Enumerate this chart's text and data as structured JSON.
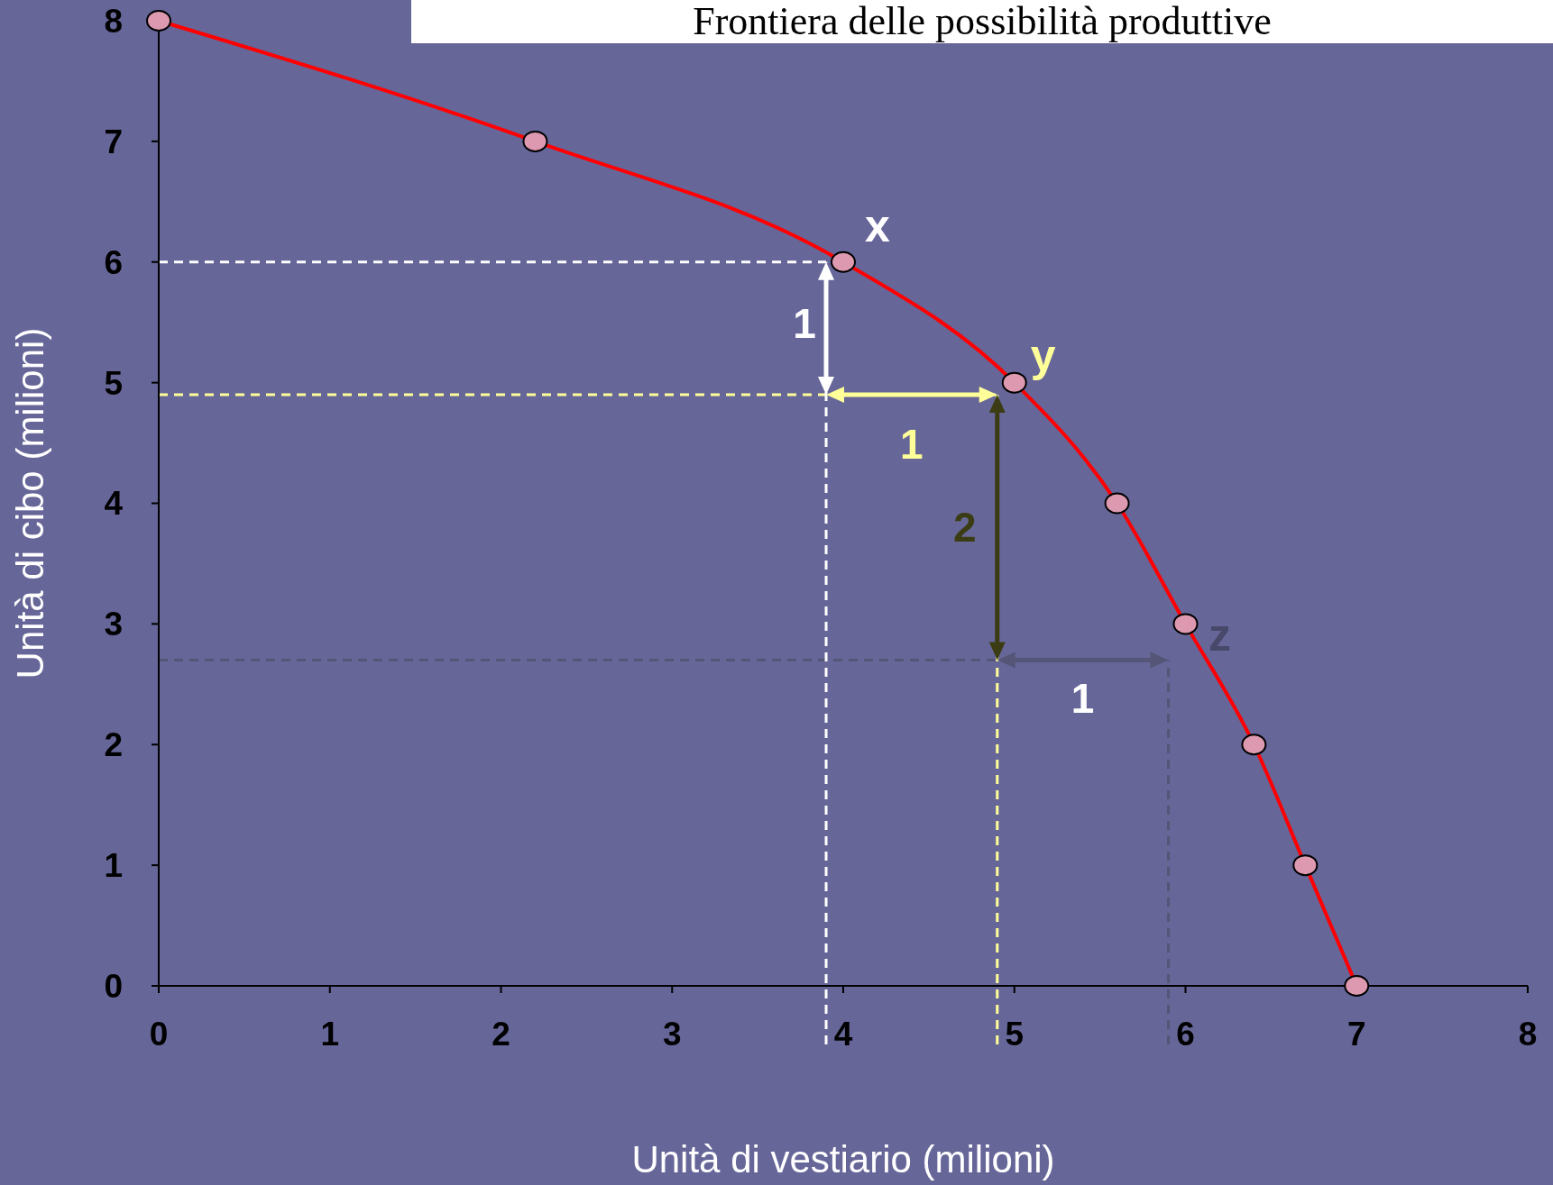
{
  "chart_data": {
    "type": "line",
    "title": "Frontiera delle possibilità produttive",
    "xlabel": "Unità di vestiario (milioni)",
    "ylabel": "Unità di cibo (milioni)",
    "x": [
      0,
      2.2,
      4,
      5,
      5.6,
      6,
      6.4,
      6.7,
      7
    ],
    "series": [
      {
        "color": "#ff0000",
        "values": [
          8,
          7,
          6,
          5,
          4,
          3,
          2,
          1,
          0
        ]
      }
    ],
    "marker": "circle",
    "line_style": "solid",
    "grid": false,
    "xlim": [
      0,
      8
    ],
    "ylim": [
      0,
      8
    ],
    "xticks": [
      0,
      1,
      2,
      3,
      4,
      5,
      6,
      7,
      8
    ],
    "yticks": [
      0,
      1,
      2,
      3,
      4,
      5,
      6,
      7,
      8
    ],
    "ref_lines": [
      {
        "axis": "y",
        "value": 6,
        "color": "#ffffff",
        "line_style": "dashed"
      },
      {
        "axis": "y",
        "value": 4.9,
        "color": "#ffff99",
        "line_style": "dashed"
      },
      {
        "axis": "y",
        "value": 2.7,
        "color": "#555577",
        "line_style": "dashed"
      },
      {
        "axis": "x",
        "value": 3.9,
        "color": "#ffffff",
        "line_style": "dashed"
      },
      {
        "axis": "x",
        "value": 4.9,
        "color": "#ffff99",
        "line_style": "dashed"
      },
      {
        "axis": "x",
        "value": 5.9,
        "color": "#555577",
        "line_style": "dashed"
      }
    ],
    "annotations": [
      {
        "text": "x",
        "x": 4,
        "y": 6
      },
      {
        "text": "y",
        "x": 5,
        "y": 5
      },
      {
        "text": "z",
        "x": 6,
        "y": 3
      },
      {
        "text": "1",
        "x": 3.9,
        "y": 5.45
      },
      {
        "text": "1",
        "x": 4.4,
        "y": 4.9
      },
      {
        "text": "2",
        "x": 4.9,
        "y": 3.8
      },
      {
        "text": "1",
        "x": 5.4,
        "y": 2.7
      }
    ]
  }
}
